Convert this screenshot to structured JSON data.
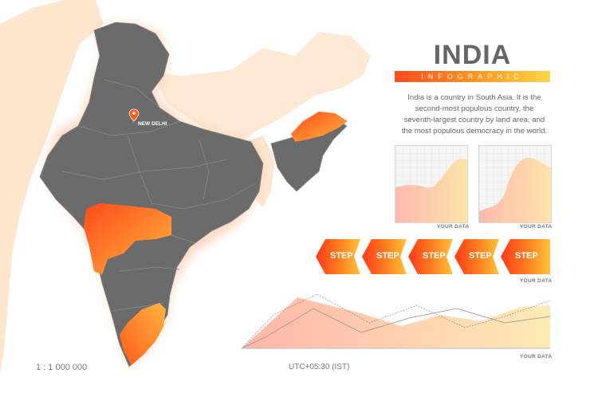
{
  "header": {
    "title": "INDIA",
    "subtitle": "INFOGRAPHIC",
    "description_lines": [
      "India is a country in South Asia. It is the",
      "second-most populous country, the",
      "seventh-largest country by land area, and",
      "the most populous democracy in the world."
    ]
  },
  "map": {
    "capital_label": "NEW DELHI",
    "scale_text": "1 : 1 000 000",
    "timezone_text": "UTC+05:30 (IST)",
    "colors": {
      "land": "#6e6e6e",
      "highlight_start": "#ff5a1f",
      "highlight_end": "#ffc14a",
      "neighbor": "#fde6cf",
      "glow": "#ffb080"
    }
  },
  "charts": {
    "area_chart_1": {
      "caption": "YOUR DATA"
    },
    "area_chart_2": {
      "caption": "YOUR DATA"
    },
    "line_chart": {
      "caption": "YOUR DATA"
    }
  },
  "steps": {
    "labels": [
      "STEP",
      "STEP",
      "STEP",
      "STEP",
      "STEP"
    ],
    "caption": "YOUR DATA"
  }
}
